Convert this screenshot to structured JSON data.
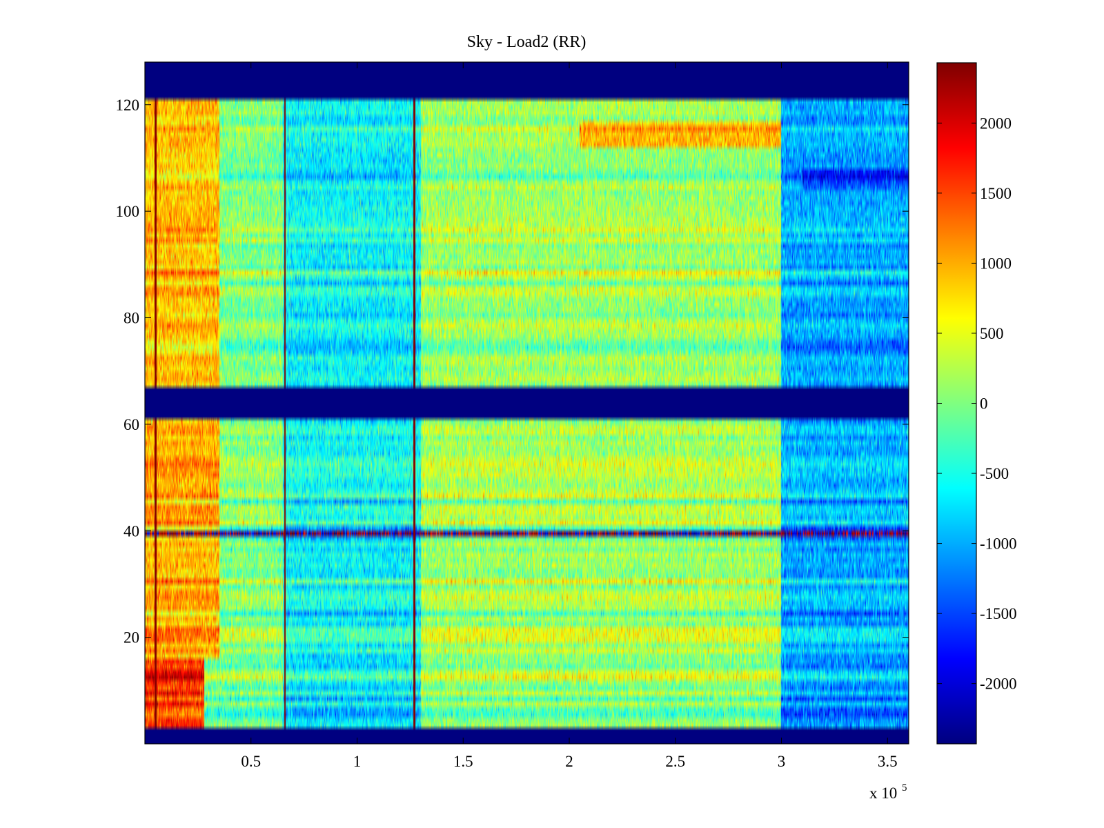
{
  "chart_data": {
    "type": "heatmap",
    "title": "Sky - Load2 (RR)",
    "xlabel": "",
    "ylabel": "",
    "xlim": [
      0,
      360000
    ],
    "ylim": [
      0,
      128
    ],
    "x_exponent_label": {
      "prefix": "x 10",
      "power": "5"
    },
    "x_ticks": [
      {
        "value": 50000,
        "label": "0.5"
      },
      {
        "value": 100000,
        "label": "1"
      },
      {
        "value": 150000,
        "label": "1.5"
      },
      {
        "value": 200000,
        "label": "2"
      },
      {
        "value": 250000,
        "label": "2.5"
      },
      {
        "value": 300000,
        "label": "3"
      },
      {
        "value": 350000,
        "label": "3.5"
      }
    ],
    "y_ticks": [
      {
        "value": 20,
        "label": "20"
      },
      {
        "value": 40,
        "label": "40"
      },
      {
        "value": 60,
        "label": "60"
      },
      {
        "value": 80,
        "label": "80"
      },
      {
        "value": 100,
        "label": "100"
      },
      {
        "value": 120,
        "label": "120"
      }
    ],
    "colorbar": {
      "colormap": "jet",
      "clim": [
        -2430,
        2430
      ],
      "ticks": [
        {
          "value": 2000,
          "label": "2000"
        },
        {
          "value": 1500,
          "label": "1500"
        },
        {
          "value": 1000,
          "label": "1000"
        },
        {
          "value": 500,
          "label": "500"
        },
        {
          "value": 0,
          "label": "0"
        },
        {
          "value": -500,
          "label": "-500"
        },
        {
          "value": -1000,
          "label": "-1000"
        },
        {
          "value": -1500,
          "label": "-1500"
        },
        {
          "value": -2000,
          "label": "-2000"
        }
      ]
    },
    "masked_channel_bands": [
      {
        "y_from": 0,
        "y_to": 3
      },
      {
        "y_from": 61,
        "y_to": 67
      },
      {
        "y_from": 121,
        "y_to": 128
      }
    ],
    "vertical_spikes": [
      {
        "x": 5000,
        "value": 2400
      },
      {
        "x": 66000,
        "value": 2400
      },
      {
        "x": 127000,
        "value": 2400
      }
    ],
    "highlight_rows": [
      {
        "y": 39,
        "pattern": "alternating",
        "low": -2000,
        "high": 2200
      }
    ],
    "regions": [
      {
        "x_from": 0,
        "x_to": 28000,
        "y_from": 3,
        "y_to": 16,
        "value": 1700
      },
      {
        "x_from": 0,
        "x_to": 35000,
        "y_from": 16,
        "y_to": 61,
        "value": 950
      },
      {
        "x_from": 0,
        "x_to": 35000,
        "y_from": 67,
        "y_to": 121,
        "value": 900
      },
      {
        "x_from": 65000,
        "x_to": 130000,
        "y_from": 3,
        "y_to": 121,
        "value": -600
      },
      {
        "x_from": 130000,
        "x_to": 300000,
        "y_from": 3,
        "y_to": 121,
        "value": 150
      },
      {
        "x_from": 205000,
        "x_to": 300000,
        "y_from": 112,
        "y_to": 117,
        "value": 900
      },
      {
        "x_from": 300000,
        "x_to": 360000,
        "y_from": 3,
        "y_to": 121,
        "value": -1000
      },
      {
        "x_from": 310000,
        "x_to": 360000,
        "y_from": 104,
        "y_to": 108,
        "value": -1500
      }
    ],
    "grid": false,
    "legend": "colorbar-right"
  }
}
